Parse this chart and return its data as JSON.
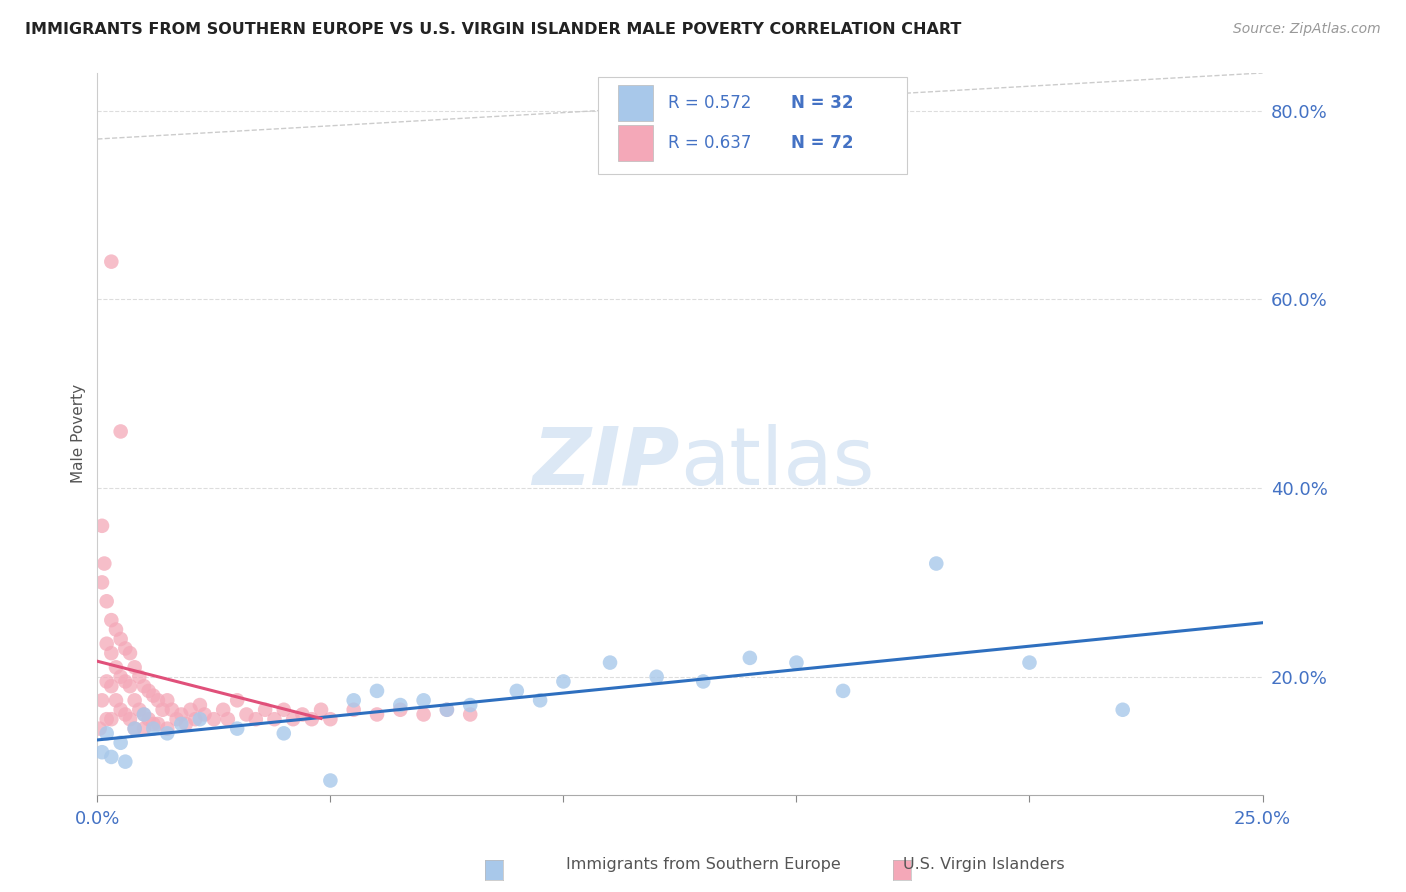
{
  "title": "IMMIGRANTS FROM SOUTHERN EUROPE VS U.S. VIRGIN ISLANDER MALE POVERTY CORRELATION CHART",
  "source": "Source: ZipAtlas.com",
  "ylabel": "Male Poverty",
  "xmin": 0.0,
  "xmax": 0.25,
  "ymin": 0.075,
  "ymax": 0.84,
  "ytick_labels_right": [
    "20.0%",
    "40.0%",
    "60.0%",
    "80.0%"
  ],
  "ytick_vals_right": [
    0.2,
    0.4,
    0.6,
    0.8
  ],
  "blue_R": 0.572,
  "blue_N": 32,
  "pink_R": 0.637,
  "pink_N": 72,
  "blue_color": "#A8C8EA",
  "pink_color": "#F4A8B8",
  "blue_line_color": "#2E6FBF",
  "pink_line_color": "#E0507A",
  "gray_dash_color": "#CCCCCC",
  "watermark_color": "#DCE8F5",
  "legend_text_color": "#4472C4",
  "legend_R_color": "#333333",
  "grid_color": "#DDDDDD",
  "blue_scatter_x": [
    0.001,
    0.002,
    0.003,
    0.005,
    0.006,
    0.008,
    0.01,
    0.012,
    0.015,
    0.018,
    0.022,
    0.03,
    0.04,
    0.05,
    0.055,
    0.06,
    0.065,
    0.07,
    0.075,
    0.08,
    0.09,
    0.095,
    0.1,
    0.11,
    0.12,
    0.13,
    0.14,
    0.15,
    0.16,
    0.18,
    0.2,
    0.22
  ],
  "blue_scatter_y": [
    0.12,
    0.14,
    0.115,
    0.13,
    0.11,
    0.145,
    0.16,
    0.145,
    0.14,
    0.15,
    0.155,
    0.145,
    0.14,
    0.09,
    0.175,
    0.185,
    0.17,
    0.175,
    0.165,
    0.17,
    0.185,
    0.175,
    0.195,
    0.215,
    0.2,
    0.195,
    0.22,
    0.215,
    0.185,
    0.32,
    0.215,
    0.165
  ],
  "pink_scatter_x": [
    0.0005,
    0.001,
    0.001,
    0.001,
    0.0015,
    0.002,
    0.002,
    0.002,
    0.002,
    0.003,
    0.003,
    0.003,
    0.003,
    0.004,
    0.004,
    0.004,
    0.005,
    0.005,
    0.005,
    0.005,
    0.006,
    0.006,
    0.006,
    0.007,
    0.007,
    0.007,
    0.008,
    0.008,
    0.008,
    0.009,
    0.009,
    0.01,
    0.01,
    0.01,
    0.011,
    0.011,
    0.012,
    0.012,
    0.013,
    0.013,
    0.014,
    0.015,
    0.015,
    0.016,
    0.017,
    0.018,
    0.019,
    0.02,
    0.021,
    0.022,
    0.023,
    0.025,
    0.027,
    0.028,
    0.03,
    0.032,
    0.034,
    0.036,
    0.038,
    0.04,
    0.042,
    0.044,
    0.046,
    0.048,
    0.05,
    0.055,
    0.06,
    0.065,
    0.07,
    0.075,
    0.08,
    0.003
  ],
  "pink_scatter_y": [
    0.145,
    0.36,
    0.3,
    0.175,
    0.32,
    0.28,
    0.235,
    0.195,
    0.155,
    0.26,
    0.225,
    0.19,
    0.155,
    0.25,
    0.21,
    0.175,
    0.46,
    0.24,
    0.2,
    0.165,
    0.23,
    0.195,
    0.16,
    0.225,
    0.19,
    0.155,
    0.21,
    0.175,
    0.145,
    0.2,
    0.165,
    0.19,
    0.16,
    0.145,
    0.185,
    0.155,
    0.18,
    0.15,
    0.175,
    0.15,
    0.165,
    0.175,
    0.145,
    0.165,
    0.155,
    0.16,
    0.15,
    0.165,
    0.155,
    0.17,
    0.16,
    0.155,
    0.165,
    0.155,
    0.175,
    0.16,
    0.155,
    0.165,
    0.155,
    0.165,
    0.155,
    0.16,
    0.155,
    0.165,
    0.155,
    0.165,
    0.16,
    0.165,
    0.16,
    0.165,
    0.16,
    0.64
  ]
}
